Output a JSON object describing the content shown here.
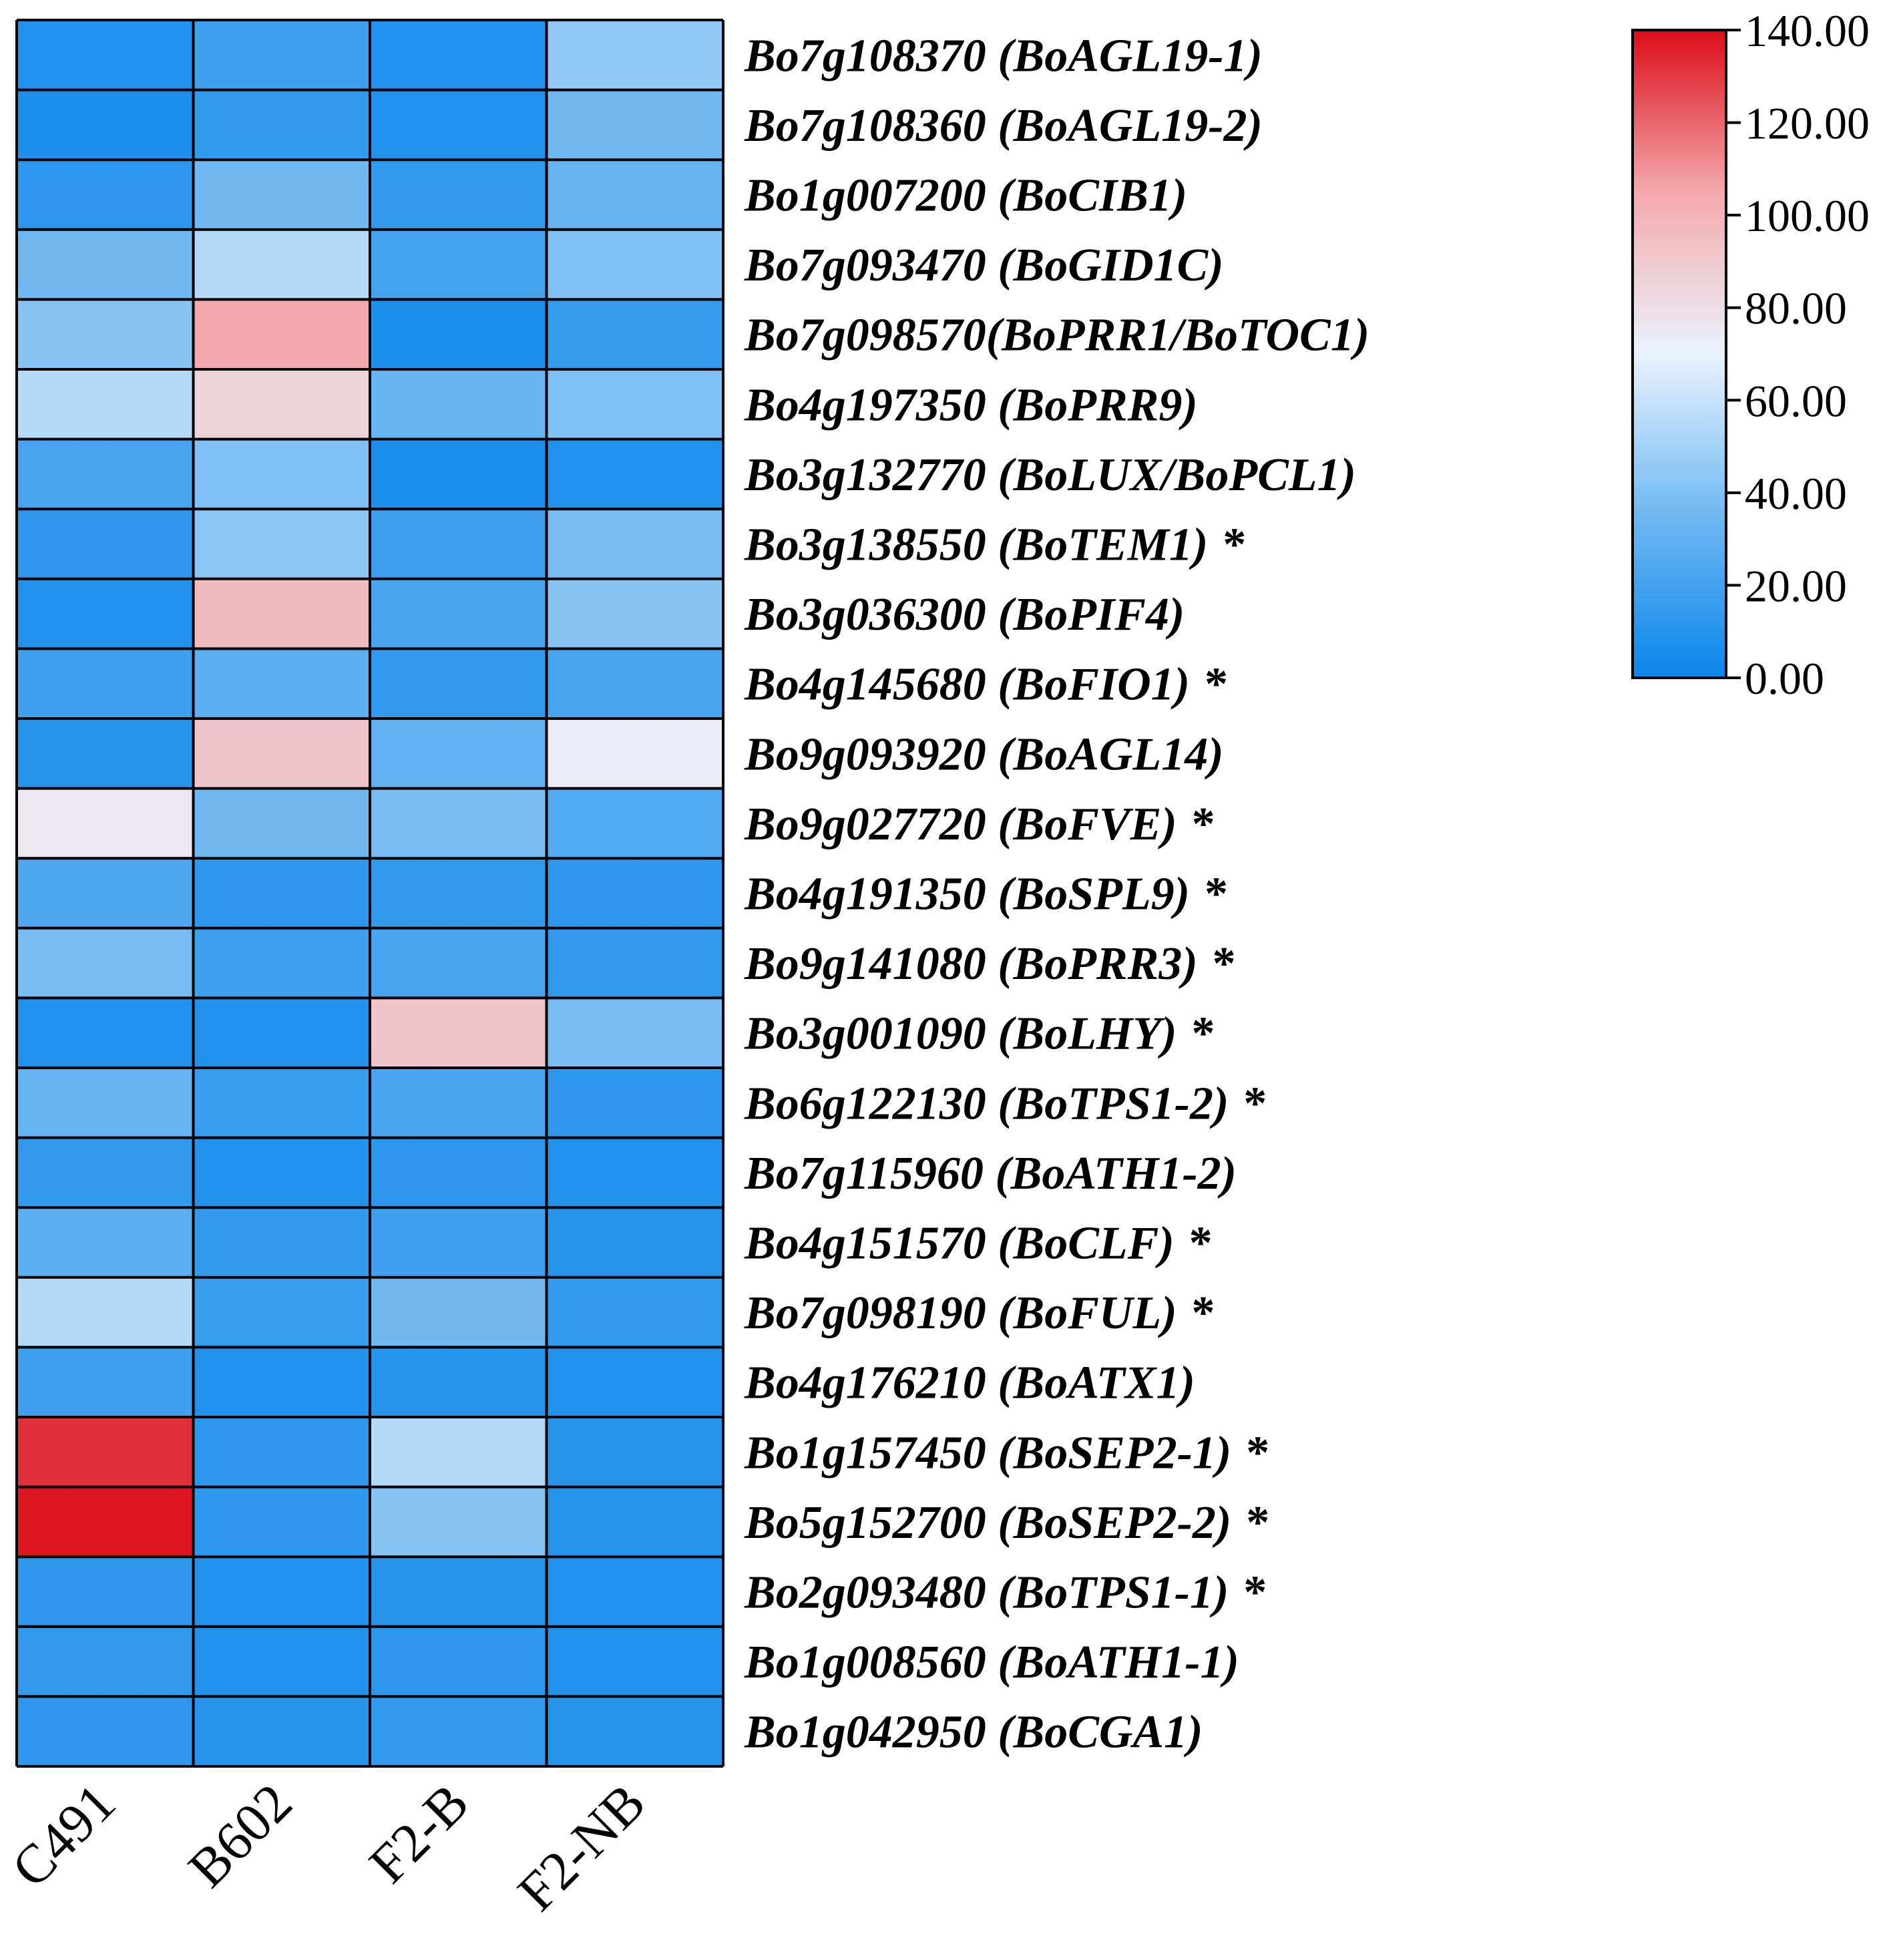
{
  "chart_data": {
    "type": "heatmap",
    "columns": [
      "C491",
      "B602",
      "F2-B",
      "F2-NB"
    ],
    "rows": [
      {
        "gene": "Bo7g108370 (BoAGL19-1)",
        "star": "",
        "values": [
          8,
          18,
          8,
          45
        ]
      },
      {
        "gene": "Bo7g108360 (BoAGL19-2)",
        "star": "",
        "values": [
          7,
          14,
          8,
          35
        ]
      },
      {
        "gene": "Bo1g007200 (BoCIB1)",
        "star": "",
        "values": [
          12,
          35,
          14,
          32
        ]
      },
      {
        "gene": "Bo7g093470 (BoGID1C)",
        "star": "",
        "values": [
          35,
          55,
          20,
          40
        ]
      },
      {
        "gene": "Bo7g098570(BoPRR1/BoTOC1)",
        "star": "",
        "values": [
          42,
          105,
          7,
          15
        ]
      },
      {
        "gene": "Bo4g197350 (BoPRR9)",
        "star": "",
        "values": [
          55,
          85,
          32,
          40
        ]
      },
      {
        "gene": "Bo3g132770 (BoLUX/BoPCL1)",
        "star": "",
        "values": [
          22,
          40,
          7,
          8
        ]
      },
      {
        "gene": "Bo3g138550 (BoTEM1)",
        "star": "*",
        "values": [
          12,
          43,
          18,
          38
        ]
      },
      {
        "gene": "Bo3g036300 (BoPIF4)",
        "star": "",
        "values": [
          8,
          97,
          22,
          42
        ]
      },
      {
        "gene": "Bo4g145680 (BoFIO1)",
        "star": "*",
        "values": [
          18,
          28,
          14,
          22
        ]
      },
      {
        "gene": "Bo9g093920 (BoAGL14)",
        "star": "",
        "values": [
          10,
          92,
          30,
          73
        ]
      },
      {
        "gene": "Bo9g027720 (BoFVE)",
        "star": "*",
        "values": [
          75,
          35,
          38,
          25
        ]
      },
      {
        "gene": "Bo4g191350 (BoSPL9)",
        "star": "*",
        "values": [
          24,
          12,
          14,
          12
        ]
      },
      {
        "gene": "Bo9g141080 (BoPRR3)",
        "star": "*",
        "values": [
          38,
          18,
          22,
          13
        ]
      },
      {
        "gene": "Bo3g001090 (BoLHY)",
        "star": "*",
        "values": [
          8,
          8,
          92,
          38
        ]
      },
      {
        "gene": "Bo6g122130 (BoTPS1-2)",
        "star": "*",
        "values": [
          32,
          16,
          22,
          12
        ]
      },
      {
        "gene": "Bo7g115960 (BoATH1-2)",
        "star": "",
        "values": [
          14,
          8,
          12,
          8
        ]
      },
      {
        "gene": "Bo4g151570 (BoCLF)",
        "star": "*",
        "values": [
          28,
          14,
          18,
          10
        ]
      },
      {
        "gene": "Bo7g098190 (BoFUL)",
        "star": "*",
        "values": [
          55,
          16,
          35,
          14
        ]
      },
      {
        "gene": "Bo4g176210 (BoATX1)",
        "star": "",
        "values": [
          18,
          8,
          10,
          8
        ]
      },
      {
        "gene": "Bo1g157450 (BoSEP2-1)",
        "star": "*",
        "values": [
          132,
          12,
          55,
          10
        ]
      },
      {
        "gene": "Bo5g152700 (BoSEP2-2)",
        "star": "*",
        "values": [
          138,
          12,
          42,
          10
        ]
      },
      {
        "gene": "Bo2g093480 (BoTPS1-1)",
        "star": "*",
        "values": [
          12,
          8,
          10,
          8
        ]
      },
      {
        "gene": "Bo1g008560 (BoATH1-1)",
        "star": "",
        "values": [
          14,
          8,
          12,
          8
        ]
      },
      {
        "gene": "Bo1g042950 (BoCGA1)",
        "star": "",
        "values": [
          12,
          10,
          14,
          10
        ]
      }
    ],
    "colorbar": {
      "min": 0,
      "max": 140,
      "ticks": [
        "140.00",
        "120.00",
        "100.00",
        "80.00",
        "60.00",
        "40.00",
        "20.00",
        "0.00"
      ],
      "colors": [
        "#0a86ea",
        "#6fb8f2",
        "#e9f3fd",
        "#f4a9ad",
        "#dc0c18"
      ]
    }
  }
}
